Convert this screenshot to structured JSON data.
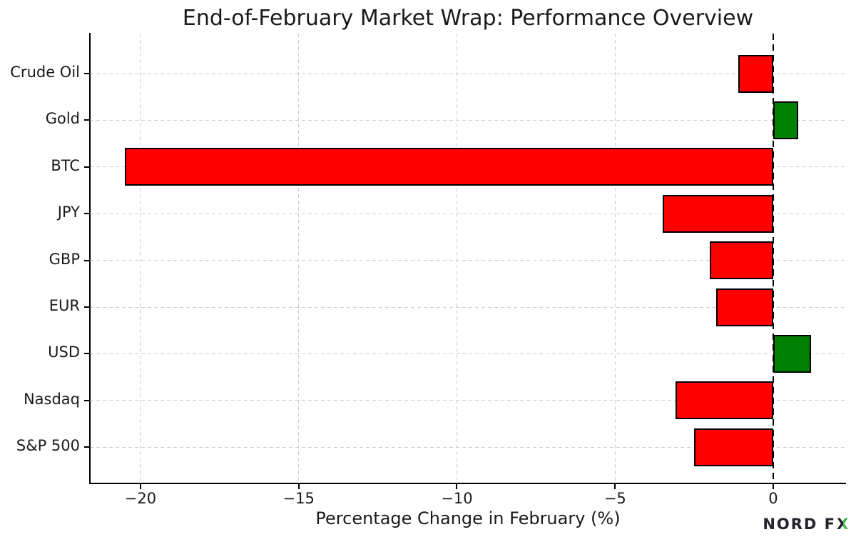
{
  "colors": {
    "negative": "#ff0000",
    "positive": "#008000",
    "bar_edge": "#000000",
    "grid": "#cccccc",
    "zero_line": "#000000",
    "logo_dark": "#23232d",
    "logo_green": "#3fb349"
  },
  "logo": {
    "prefix": "NORD F",
    "x": "X"
  },
  "chart_data": {
    "type": "bar",
    "orientation": "horizontal",
    "title": "End-of-February Market Wrap: Performance Overview",
    "xlabel": "Percentage Change in February (%)",
    "ylabel": "",
    "categories": [
      "Crude Oil",
      "Gold",
      "BTC",
      "JPY",
      "GBP",
      "EUR",
      "USD",
      "Nasdaq",
      "S&P 500"
    ],
    "values": [
      -1.1,
      0.8,
      -20.5,
      -3.5,
      -2.0,
      -1.8,
      1.2,
      -3.1,
      -2.5
    ],
    "bar_colors": [
      "#ff0000",
      "#008000",
      "#ff0000",
      "#ff0000",
      "#ff0000",
      "#ff0000",
      "#008000",
      "#ff0000",
      "#ff0000"
    ],
    "xlim": [
      -21.6,
      2.3
    ],
    "xticks": [
      -20,
      -15,
      -10,
      -5,
      0
    ],
    "xtick_labels": [
      "−20",
      "−15",
      "−10",
      "−5",
      "0"
    ],
    "grid": true,
    "grid_style": "dashed",
    "zero_line": "black dashed vertical at 0",
    "legend": "none"
  }
}
